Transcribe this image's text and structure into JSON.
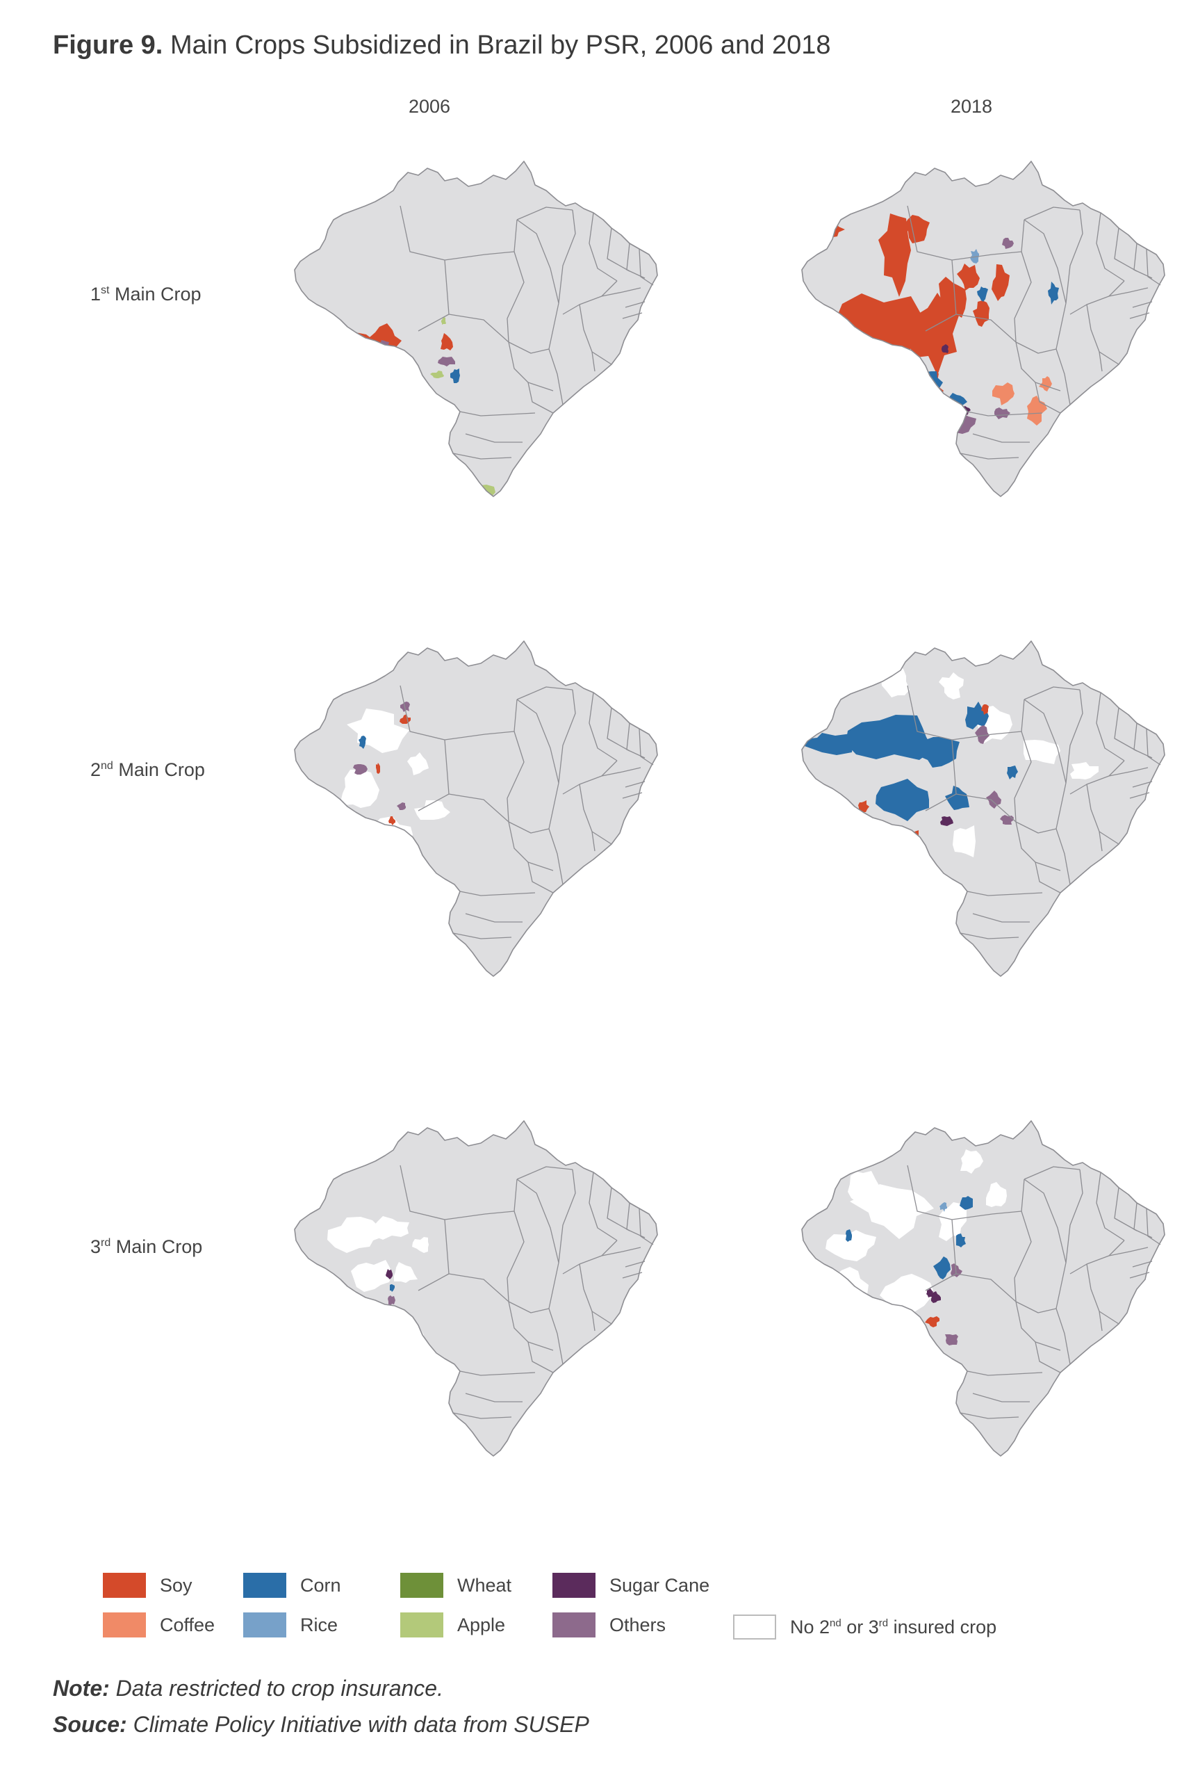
{
  "figure": {
    "number_label": "Figure 9.",
    "title": "Main Crops Subsidized in Brazil by PSR, 2006 and 2018"
  },
  "columns": [
    "2006",
    "2018"
  ],
  "rows": [
    {
      "ordinal": "1",
      "suffix": "st",
      "label": "Main Crop"
    },
    {
      "ordinal": "2",
      "suffix": "nd",
      "label": "Main Crop"
    },
    {
      "ordinal": "3",
      "suffix": "rd",
      "label": "Main Crop"
    }
  ],
  "colors": {
    "base": "#dedee0",
    "border": "#8d8d92",
    "none": "#ffffff",
    "soy": "#d44a2a",
    "coffee": "#f08a67",
    "corn": "#2a6ea8",
    "rice": "#77a1c9",
    "wheat": "#6e9039",
    "apple": "#b3c97a",
    "sugar_cane": "#5b2b5c",
    "others": "#8d6a8c"
  },
  "legend": [
    {
      "key": "soy",
      "label": "Soy"
    },
    {
      "key": "corn",
      "label": "Corn"
    },
    {
      "key": "wheat",
      "label": "Wheat"
    },
    {
      "key": "sugar_cane",
      "label": "Sugar Cane"
    },
    {
      "key": "coffee",
      "label": "Coffee"
    },
    {
      "key": "rice",
      "label": "Rice"
    },
    {
      "key": "apple",
      "label": "Apple"
    },
    {
      "key": "others",
      "label": "Others"
    }
  ],
  "legend_none": {
    "pre": "No 2",
    "sup1": "nd",
    "mid": " or 3",
    "sup2": "rd",
    "post": " insured crop"
  },
  "note": {
    "label": "Note:",
    "text": " Data restricted to crop insurance."
  },
  "source": {
    "label": "Souce:",
    "text": " Climate Policy Initiative with data from SUSEP"
  }
}
